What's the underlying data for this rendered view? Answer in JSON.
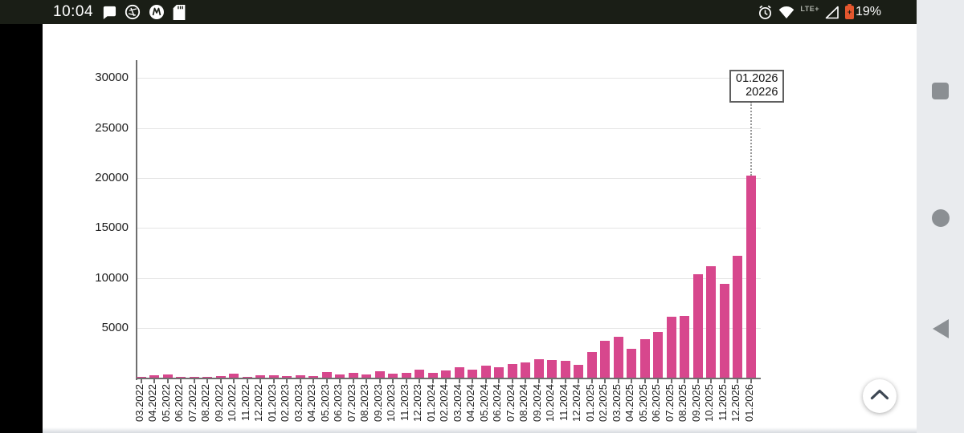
{
  "status_bar": {
    "time": "10:04",
    "left_icons": [
      "chat-bubble-icon",
      "browser-globe-icon",
      "motorola-icon",
      "sd-card-icon"
    ],
    "network_label": "LTE+",
    "battery_percent": "19%"
  },
  "nav_bar": {
    "buttons": [
      "recents",
      "home",
      "back"
    ]
  },
  "fab": {
    "icon": "chevron-up"
  },
  "tooltip": {
    "label": "01.2026",
    "value": "20226"
  },
  "chart_data": {
    "type": "bar",
    "title": "",
    "xlabel": "",
    "ylabel": "",
    "bar_color": "#d7478d",
    "grid": true,
    "ylim": [
      0,
      32000
    ],
    "yticks": [
      5000,
      10000,
      15000,
      20000,
      25000,
      30000
    ],
    "categories": [
      "03.2022",
      "04.2022",
      "05.2022",
      "06.2022",
      "07.2022",
      "08.2022",
      "09.2022",
      "10.2022",
      "11.2022",
      "12.2022",
      "01.2023",
      "02.2023",
      "03.2023",
      "04.2023",
      "05.2023",
      "06.2023",
      "07.2023",
      "08.2023",
      "09.2023",
      "10.2023",
      "11.2023",
      "12.2023",
      "01.2024",
      "02.2024",
      "03.2024",
      "04.2024",
      "05.2024",
      "06.2024",
      "07.2024",
      "08.2024",
      "09.2024",
      "10.2024",
      "11.2024",
      "12.2024",
      "01.2025",
      "02.2025",
      "03.2025",
      "04.2025",
      "05.2025",
      "06.2025",
      "07.2025",
      "08.2025",
      "09.2025",
      "10.2025",
      "11.2025",
      "12.2025",
      "01.2026"
    ],
    "values": [
      150,
      270,
      380,
      130,
      160,
      140,
      240,
      480,
      160,
      290,
      270,
      190,
      270,
      210,
      640,
      400,
      500,
      350,
      670,
      460,
      560,
      850,
      510,
      750,
      1120,
      880,
      1230,
      1070,
      1400,
      1600,
      1900,
      1840,
      1700,
      1350,
      2600,
      3700,
      4150,
      2950,
      3900,
      4600,
      6100,
      6200,
      10350,
      11200,
      9400,
      12250,
      20226
    ],
    "highlighted_point": {
      "category": "01.2026",
      "value": 20226
    }
  }
}
